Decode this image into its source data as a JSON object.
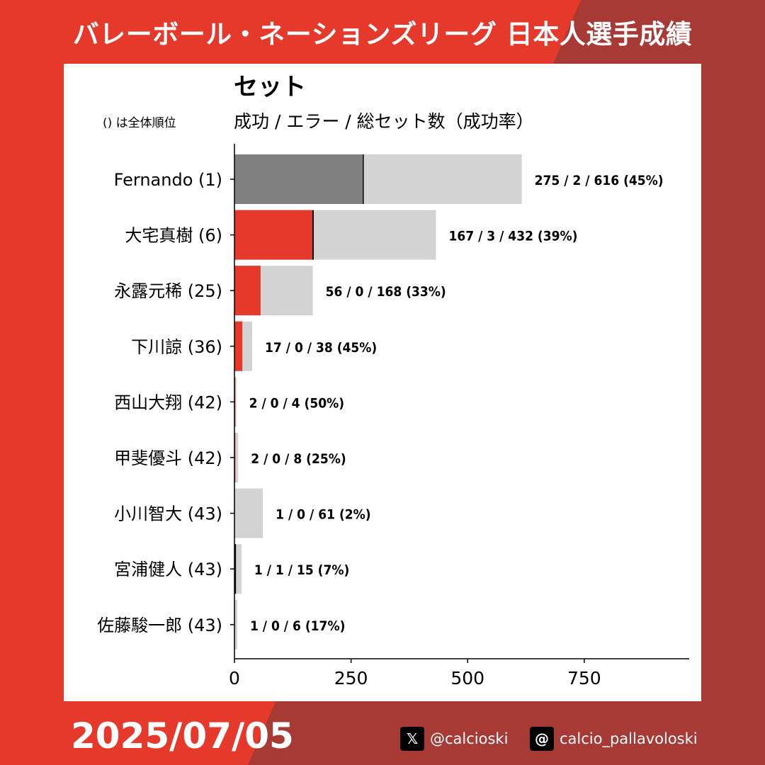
{
  "header": {
    "title": "バレーボール・ネーションズリーグ 日本人選手成績"
  },
  "footer": {
    "date": "2025/07/05",
    "x_handle": "@calcioski",
    "x_icon": "x-logo-icon",
    "threads_handle": "calcio_pallavoloski",
    "threads_icon": "threads-logo-icon"
  },
  "colors": {
    "background_red": "#e5392c",
    "background_dark": "#a83a36",
    "success_highlight": "#808080",
    "success": "#e5392c",
    "total": "#d3d3d3"
  },
  "chart_data": {
    "type": "bar",
    "orientation": "horizontal",
    "title": "セット",
    "subtitle": "成功 / エラー / 総セット数（成功率）",
    "note": "() は全体順位",
    "categories": [
      "Fernando (1)",
      "大宅真樹 (6)",
      "永露元稀 (25)",
      "下川諒 (36)",
      "西山大翔 (42)",
      "甲斐優斗 (42)",
      "小川智大 (43)",
      "宮浦健人 (43)",
      "佐藤駿一郎 (43)"
    ],
    "series": [
      {
        "name": "成功",
        "values": [
          275,
          167,
          56,
          17,
          2,
          2,
          1,
          1,
          1
        ]
      },
      {
        "name": "エラー",
        "values": [
          2,
          3,
          0,
          0,
          0,
          0,
          0,
          1,
          0
        ]
      },
      {
        "name": "総セット数",
        "values": [
          616,
          432,
          168,
          38,
          4,
          8,
          61,
          15,
          6
        ]
      }
    ],
    "data_labels": [
      "275 / 2 / 616 (45%)",
      "167 / 3 / 432 (39%)",
      "56 / 0 / 168 (33%)",
      "17 / 0 / 38 (45%)",
      "2 / 0 / 4 (50%)",
      "2 / 0 / 8 (25%)",
      "1 / 0 / 61 (2%)",
      "1 / 1 / 15 (7%)",
      "1 / 0 / 6 (17%)"
    ],
    "xlim": [
      0,
      975
    ],
    "xticks": [
      0,
      250,
      500,
      750
    ],
    "xtick_labels": [
      "0",
      "250",
      "500",
      "750"
    ],
    "grid": false,
    "legend": false
  }
}
